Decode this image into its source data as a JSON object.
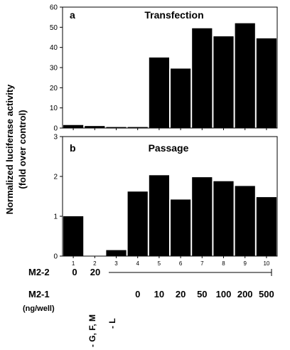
{
  "chart_data": [
    {
      "type": "bar",
      "panel": "a",
      "title": "Transfection",
      "categories": [
        "1",
        "2",
        "3",
        "4",
        "5",
        "6",
        "7",
        "8",
        "9",
        "10"
      ],
      "values": [
        1.5,
        1.0,
        0.5,
        0.5,
        35,
        29.5,
        49.5,
        45.5,
        52,
        44.5
      ],
      "ylim": [
        0,
        60
      ],
      "yticks": [
        "0",
        "10",
        "20",
        "30",
        "40",
        "50",
        "60"
      ],
      "grid": false
    },
    {
      "type": "bar",
      "panel": "b",
      "title": "Passage",
      "categories": [
        "1",
        "2",
        "3",
        "4",
        "5",
        "6",
        "7",
        "8",
        "9",
        "10"
      ],
      "values": [
        1.0,
        0.0,
        0.15,
        1.62,
        2.03,
        1.42,
        1.98,
        1.88,
        1.76,
        1.48
      ],
      "ylim": [
        0,
        3
      ],
      "yticks": [
        "0",
        "1",
        "2",
        "3"
      ],
      "grid": false
    }
  ],
  "ylabel_line1": "Normalized luciferase activity",
  "ylabel_line2": "(fold over control)",
  "conditions": {
    "m22_label": "M2-2",
    "m22_values": [
      "0",
      "20"
    ],
    "m21_label": "M2-1",
    "m21_unit": "(ng/well)",
    "m21_values": [
      "0",
      "10",
      "20",
      "50",
      "100",
      "200",
      "500"
    ],
    "missing_gfm": "- G, F, M",
    "missing_l": "- L"
  }
}
